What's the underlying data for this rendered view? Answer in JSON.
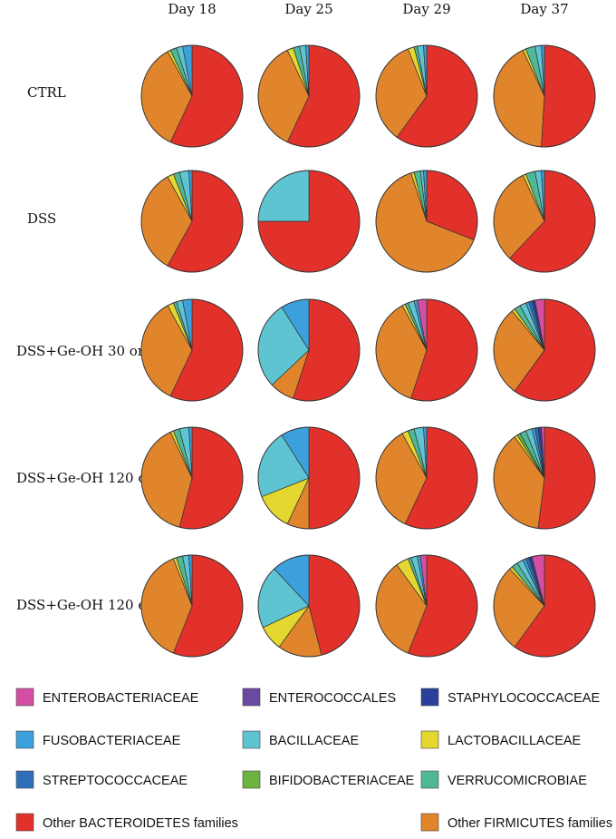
{
  "chart_data": {
    "type": "pie",
    "columns": [
      "Day 18",
      "Day 25",
      "Day 29",
      "Day 37"
    ],
    "rows": [
      "CTRL",
      "DSS",
      "DSS+Ge-OH 30 or",
      "DSS+Ge-OH 120 or",
      "DSS+Ge-OH 120 en"
    ],
    "categories": [
      "ENTEROBACTERIACEAE",
      "ENTEROCOCCALES",
      "STAPHYLOCOCCACEAE",
      "FUSOBACTERIACEAE",
      "BACILLACEAE",
      "LACTOBACILLACEAE",
      "STREPTOCOCCACEAE",
      "BIFIDOBACTERIACEAE",
      "VERRUCOMICROBIAE",
      "Other BACTEROIDETES families",
      "Other FIRMICUTES families"
    ],
    "colors": {
      "ENTEROBACTERIACEAE": "#d44fa3",
      "ENTEROCOCCALES": "#6a4aa0",
      "STAPHYLOCOCCACEAE": "#2a3f9a",
      "FUSOBACTERIACEAE": "#3ba0dc",
      "BACILLACEAE": "#5ec4d1",
      "LACTOBACILLACEAE": "#e3d730",
      "STREPTOCOCCACEAE": "#2f6fba",
      "BIFIDOBACTERIACEAE": "#6db33f",
      "VERRUCOMICROBIAE": "#4fb897",
      "Other BACTEROIDETES families": "#e2312a",
      "Other FIRMICUTES families": "#e0852b"
    },
    "pies": [
      [
        {
          "ENTEROBACTERIACEAE": 0,
          "ENTEROCOCCALES": 0,
          "STAPHYLOCOCCACEAE": 0,
          "FUSOBACTERIACEAE": 3,
          "BACILLACEAE": 2,
          "LACTOBACILLACEAE": 1,
          "STREPTOCOCCACEAE": 0,
          "BIFIDOBACTERIACEAE": 0,
          "VERRUCOMICROBIAE": 2,
          "Other BACTEROIDETES families": 57,
          "Other FIRMICUTES families": 35
        },
        {
          "ENTEROBACTERIACEAE": 0,
          "ENTEROCOCCALES": 0,
          "STAPHYLOCOCCACEAE": 0,
          "FUSOBACTERIACEAE": 1,
          "BACILLACEAE": 2,
          "LACTOBACILLACEAE": 2,
          "STREPTOCOCCACEAE": 0,
          "BIFIDOBACTERIACEAE": 0,
          "VERRUCOMICROBIAE": 2,
          "Other BACTEROIDETES families": 57,
          "Other FIRMICUTES families": 36
        },
        {
          "ENTEROBACTERIACEAE": 0,
          "ENTEROCOCCALES": 0,
          "STAPHYLOCOCCACEAE": 0,
          "FUSOBACTERIACEAE": 1,
          "BACILLACEAE": 2,
          "LACTOBACILLACEAE": 2,
          "STREPTOCOCCACEAE": 0,
          "BIFIDOBACTERIACEAE": 0,
          "VERRUCOMICROBIAE": 1,
          "Other BACTEROIDETES families": 60,
          "Other FIRMICUTES families": 34
        },
        {
          "ENTEROBACTERIACEAE": 0,
          "ENTEROCOCCALES": 0,
          "STAPHYLOCOCCACEAE": 0,
          "FUSOBACTERIACEAE": 1,
          "BACILLACEAE": 2,
          "LACTOBACILLACEAE": 1,
          "STREPTOCOCCACEAE": 0,
          "BIFIDOBACTERIACEAE": 0,
          "VERRUCOMICROBIAE": 3,
          "Other BACTEROIDETES families": 51,
          "Other FIRMICUTES families": 42
        }
      ],
      [
        {
          "ENTEROBACTERIACEAE": 0,
          "ENTEROCOCCALES": 0,
          "STAPHYLOCOCCACEAE": 0,
          "FUSOBACTERIACEAE": 1,
          "BACILLACEAE": 3,
          "LACTOBACILLACEAE": 2,
          "STREPTOCOCCACEAE": 0,
          "BIFIDOBACTERIACEAE": 0,
          "VERRUCOMICROBIAE": 2,
          "Other BACTEROIDETES families": 58,
          "Other FIRMICUTES families": 34
        },
        {
          "ENTEROBACTERIACEAE": 0,
          "ENTEROCOCCALES": 0,
          "STAPHYLOCOCCACEAE": 0,
          "FUSOBACTERIACEAE": 0,
          "BACILLACEAE": 25,
          "LACTOBACILLACEAE": 0,
          "STREPTOCOCCACEAE": 0,
          "BIFIDOBACTERIACEAE": 0,
          "VERRUCOMICROBIAE": 0,
          "Other BACTEROIDETES families": 75,
          "Other FIRMICUTES families": 0
        },
        {
          "ENTEROBACTERIACEAE": 0,
          "ENTEROCOCCALES": 0,
          "STAPHYLOCOCCACEAE": 0,
          "FUSOBACTERIACEAE": 1,
          "BACILLACEAE": 1,
          "LACTOBACILLACEAE": 1,
          "STREPTOCOCCACEAE": 0,
          "BIFIDOBACTERIACEAE": 0,
          "VERRUCOMICROBIAE": 2,
          "Other BACTEROIDETES families": 31,
          "Other FIRMICUTES families": 64
        },
        {
          "ENTEROBACTERIACEAE": 0,
          "ENTEROCOCCALES": 0,
          "STAPHYLOCOCCACEAE": 0,
          "FUSOBACTERIACEAE": 1,
          "BACILLACEAE": 2,
          "LACTOBACILLACEAE": 1,
          "STREPTOCOCCACEAE": 0,
          "BIFIDOBACTERIACEAE": 0,
          "VERRUCOMICROBIAE": 3,
          "Other BACTEROIDETES families": 62,
          "Other FIRMICUTES families": 31
        }
      ],
      [
        {
          "ENTEROBACTERIACEAE": 0,
          "ENTEROCOCCALES": 0,
          "STAPHYLOCOCCACEAE": 0,
          "FUSOBACTERIACEAE": 3,
          "BACILLACEAE": 2,
          "LACTOBACILLACEAE": 2,
          "STREPTOCOCCACEAE": 0,
          "BIFIDOBACTERIACEAE": 0,
          "VERRUCOMICROBIAE": 1,
          "Other BACTEROIDETES families": 57,
          "Other FIRMICUTES families": 35
        },
        {
          "ENTEROBACTERIACEAE": 0,
          "ENTEROCOCCALES": 0,
          "STAPHYLOCOCCACEAE": 0,
          "FUSOBACTERIACEAE": 9,
          "BACILLACEAE": 28,
          "LACTOBACILLACEAE": 0,
          "STREPTOCOCCACEAE": 0,
          "BIFIDOBACTERIACEAE": 0,
          "VERRUCOMICROBIAE": 0,
          "Other BACTEROIDETES families": 55,
          "Other FIRMICUTES families": 8
        },
        {
          "ENTEROBACTERIACEAE": 3,
          "ENTEROCOCCALES": 0,
          "STAPHYLOCOCCACEAE": 0,
          "FUSOBACTERIACEAE": 1,
          "BACILLACEAE": 2,
          "LACTOBACILLACEAE": 1,
          "STREPTOCOCCACEAE": 0,
          "BIFIDOBACTERIACEAE": 0,
          "VERRUCOMICROBIAE": 1,
          "Other BACTEROIDETES families": 55,
          "Other FIRMICUTES families": 37
        },
        {
          "ENTEROBACTERIACEAE": 3,
          "ENTEROCOCCALES": 0,
          "STAPHYLOCOCCACEAE": 1,
          "FUSOBACTERIACEAE": 1,
          "BACILLACEAE": 2,
          "LACTOBACILLACEAE": 1,
          "STREPTOCOCCACEAE": 1,
          "BIFIDOBACTERIACEAE": 0,
          "VERRUCOMICROBIAE": 2,
          "Other BACTEROIDETES families": 60,
          "Other FIRMICUTES families": 29
        }
      ],
      [
        {
          "ENTEROBACTERIACEAE": 0,
          "ENTEROCOCCALES": 0,
          "STAPHYLOCOCCACEAE": 0,
          "FUSOBACTERIACEAE": 1,
          "BACILLACEAE": 3,
          "LACTOBACILLACEAE": 1,
          "STREPTOCOCCACEAE": 0,
          "BIFIDOBACTERIACEAE": 0,
          "VERRUCOMICROBIAE": 2,
          "Other BACTEROIDETES families": 54,
          "Other FIRMICUTES families": 39
        },
        {
          "ENTEROBACTERIACEAE": 0,
          "ENTEROCOCCALES": 0,
          "STAPHYLOCOCCACEAE": 0,
          "FUSOBACTERIACEAE": 9,
          "BACILLACEAE": 22,
          "LACTOBACILLACEAE": 12,
          "STREPTOCOCCACEAE": 0,
          "BIFIDOBACTERIACEAE": 0,
          "VERRUCOMICROBIAE": 0,
          "Other BACTEROIDETES families": 50,
          "Other FIRMICUTES families": 7
        },
        {
          "ENTEROBACTERIACEAE": 0,
          "ENTEROCOCCALES": 0,
          "STAPHYLOCOCCACEAE": 0,
          "FUSOBACTERIACEAE": 1,
          "BACILLACEAE": 3,
          "LACTOBACILLACEAE": 2,
          "STREPTOCOCCACEAE": 0,
          "BIFIDOBACTERIACEAE": 0,
          "VERRUCOMICROBIAE": 2,
          "Other BACTEROIDETES families": 57,
          "Other FIRMICUTES families": 35
        },
        {
          "ENTEROBACTERIACEAE": 1,
          "ENTEROCOCCALES": 0,
          "STAPHYLOCOCCACEAE": 1,
          "FUSOBACTERIACEAE": 1,
          "BACILLACEAE": 2,
          "LACTOBACILLACEAE": 1,
          "STREPTOCOCCACEAE": 1,
          "BIFIDOBACTERIACEAE": 1,
          "VERRUCOMICROBIAE": 2,
          "Other BACTEROIDETES families": 52,
          "Other FIRMICUTES families": 38
        }
      ],
      [
        {
          "ENTEROBACTERIACEAE": 0,
          "ENTEROCOCCALES": 0,
          "STAPHYLOCOCCACEAE": 0,
          "FUSOBACTERIACEAE": 1,
          "BACILLACEAE": 2,
          "LACTOBACILLACEAE": 1,
          "STREPTOCOCCACEAE": 0,
          "BIFIDOBACTERIACEAE": 0,
          "VERRUCOMICROBIAE": 2,
          "Other BACTEROIDETES families": 56,
          "Other FIRMICUTES families": 38
        },
        {
          "ENTEROBACTERIACEAE": 0,
          "ENTEROCOCCALES": 0,
          "STAPHYLOCOCCACEAE": 0,
          "FUSOBACTERIACEAE": 12,
          "BACILLACEAE": 20,
          "LACTOBACILLACEAE": 8,
          "STREPTOCOCCACEAE": 0,
          "BIFIDOBACTERIACEAE": 0,
          "VERRUCOMICROBIAE": 0,
          "Other BACTEROIDETES families": 46,
          "Other FIRMICUTES families": 14
        },
        {
          "ENTEROBACTERIACEAE": 2,
          "ENTEROCOCCALES": 0,
          "STAPHYLOCOCCACEAE": 0,
          "FUSOBACTERIACEAE": 1,
          "BACILLACEAE": 2,
          "LACTOBACILLACEAE": 4,
          "STREPTOCOCCACEAE": 0,
          "BIFIDOBACTERIACEAE": 0,
          "VERRUCOMICROBIAE": 1,
          "Other BACTEROIDETES families": 56,
          "Other FIRMICUTES families": 34
        },
        {
          "ENTEROBACTERIACEAE": 4,
          "ENTEROCOCCALES": 0,
          "STAPHYLOCOCCACEAE": 1,
          "FUSOBACTERIACEAE": 1,
          "BACILLACEAE": 2,
          "LACTOBACILLACEAE": 1,
          "STREPTOCOCCACEAE": 1,
          "BIFIDOBACTERIACEAE": 0,
          "VERRUCOMICROBIAE": 2,
          "Other BACTEROIDETES families": 60,
          "Other FIRMICUTES families": 28
        }
      ]
    ],
    "legend": {
      "rows": [
        [
          "ENTEROBACTERIACEAE",
          "ENTEROCOCCALES",
          "STAPHYLOCOCCACEAE"
        ],
        [
          "FUSOBACTERIACEAE",
          "BACILLACEAE",
          "LACTOBACILLACEAE"
        ],
        [
          "STREPTOCOCCACEAE",
          "BIFIDOBACTERIACEAE",
          "VERRUCOMICROBIAE"
        ],
        [
          "Other BACTEROIDETES families",
          "Other FIRMICUTES families"
        ]
      ],
      "placement": "bottom"
    }
  }
}
